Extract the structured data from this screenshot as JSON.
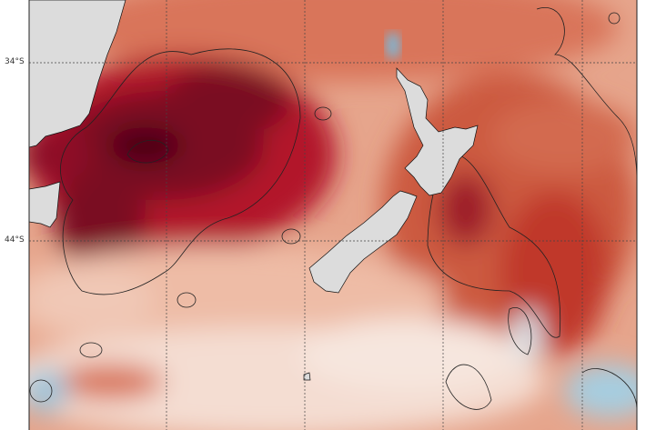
{
  "map": {
    "latitude_labels": [
      "34°S",
      "44°S"
    ],
    "colors": {
      "land": "#dcdcdc",
      "strong_warm": "#67001f",
      "warm": "#c2452f",
      "mild": "#efb9a0",
      "neutral": "#f7f2ef",
      "cool": "#8fc1d8",
      "contour": "#222222",
      "grid": "#444444"
    }
  }
}
